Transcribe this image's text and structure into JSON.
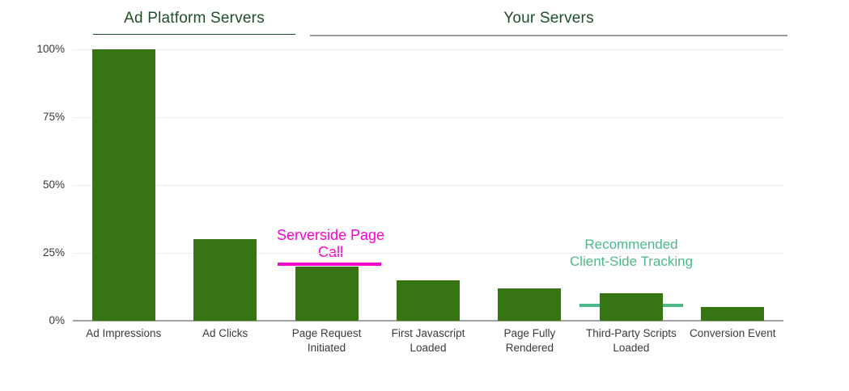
{
  "chart_data": {
    "type": "bar",
    "title": "",
    "xlabel": "",
    "ylabel": "",
    "unit": "%",
    "categories": [
      "Ad Impressions",
      "Ad Clicks",
      "Page Request Initiated",
      "First Javascript Loaded",
      "Page Fully Rendered",
      "Third-Party Scripts Loaded",
      "Conversion Event"
    ],
    "values": [
      100,
      30,
      20,
      15,
      12,
      10,
      5
    ],
    "ylim": [
      0,
      100
    ],
    "y_ticks": [
      {
        "label": "0%",
        "value": 0
      },
      {
        "label": "25%",
        "value": 25
      },
      {
        "label": "50%",
        "value": 50
      },
      {
        "label": "75%",
        "value": 75
      },
      {
        "label": "100%",
        "value": 100
      }
    ],
    "grid": true,
    "legend": "none",
    "bar_color": "#377413",
    "groups": [
      {
        "label": "Ad Platform Servers",
        "categories_spanned": [
          "Ad Impressions",
          "Ad Clicks"
        ],
        "underline_color": "#1e4e2a"
      },
      {
        "label": "Your Servers",
        "categories_spanned": [
          "Page Request Initiated",
          "First Javascript Loaded",
          "Page Fully Rendered",
          "Third-Party Scripts Loaded",
          "Conversion Event"
        ],
        "underline_color": "#9b9b9b"
      }
    ],
    "annotations": [
      {
        "text": "Serverside Page Call",
        "color": "#ff00cc",
        "target_category": "Page Request Initiated",
        "line_at_percent": 20.5
      },
      {
        "text": "Recommended Client-Side Tracking",
        "color": "#4db88a",
        "target_category": "Third-Party Scripts Loaded",
        "line_at_percent": 6
      }
    ]
  },
  "colors": {
    "header_text": "#1e4e2a",
    "axis_label": "#3a3a3a",
    "gridline": "#ececec",
    "axis_line": "#a3a3a3",
    "background": "#ffffff"
  }
}
